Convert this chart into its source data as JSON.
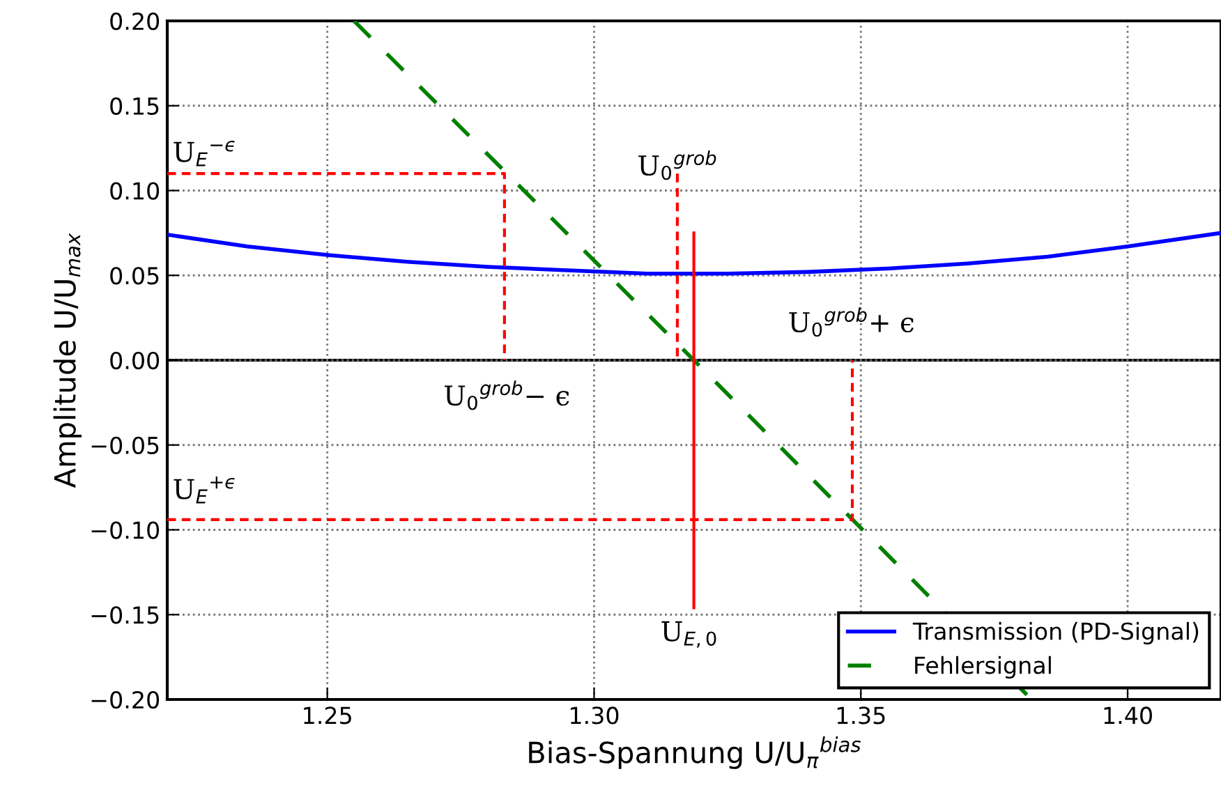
{
  "chart_data": {
    "type": "line",
    "xlabel": "Bias-Spannung U/U$_{π}$$^{bias}$",
    "ylabel": "Amplitude U/U$_{max}$",
    "xlim": [
      1.22,
      1.4175
    ],
    "ylim": [
      -0.2,
      0.2
    ],
    "xticks": [
      {
        "value": 1.25,
        "label": "1.25"
      },
      {
        "value": 1.3,
        "label": "1.30"
      },
      {
        "value": 1.35,
        "label": "1.35"
      },
      {
        "value": 1.4,
        "label": "1.40"
      }
    ],
    "yticks": [
      {
        "value": -0.2,
        "label": "−0.20"
      },
      {
        "value": -0.15,
        "label": "−0.15"
      },
      {
        "value": -0.1,
        "label": "−0.10"
      },
      {
        "value": -0.05,
        "label": "−0.05"
      },
      {
        "value": 0,
        "label": "0.00"
      },
      {
        "value": 0.05,
        "label": "0.05"
      },
      {
        "value": 0.1,
        "label": "0.10"
      },
      {
        "value": 0.15,
        "label": "0.15"
      },
      {
        "value": 0.2,
        "label": "0.20"
      }
    ],
    "grid": true,
    "legend": "bottom right",
    "marker": "none",
    "series": [
      {
        "name": "Transmission (PD-Signal)",
        "color": "#0000ff",
        "line_style": "solid",
        "x": [
          1.22,
          1.235,
          1.25,
          1.265,
          1.28,
          1.295,
          1.31,
          1.325,
          1.34,
          1.355,
          1.37,
          1.385,
          1.4,
          1.4175
        ],
        "values": [
          0.074,
          0.067,
          0.062,
          0.058,
          0.055,
          0.053,
          0.051,
          0.051,
          0.052,
          0.054,
          0.057,
          0.061,
          0.067,
          0.075
        ]
      },
      {
        "name": "Fehlersignal",
        "color": "#008000",
        "line_style": "dashed",
        "x": [
          1.255,
          1.3187,
          1.382
        ],
        "values": [
          0.2,
          0.0,
          -0.2
        ]
      },
      {
        "color": "#ff0000",
        "line_style": "dashed",
        "x": [
          1.22,
          1.2832,
          1.2832
        ],
        "values": [
          0.11,
          0.11,
          0.0
        ]
      },
      {
        "color": "#ff0000",
        "line_style": "dashed",
        "x": [
          1.3156,
          1.3156
        ],
        "values": [
          0.11,
          0.0
        ]
      },
      {
        "color": "#ff0000",
        "line_style": "dashed",
        "x": [
          1.22,
          1.3484,
          1.3484
        ],
        "values": [
          -0.094,
          -0.094,
          0.0
        ]
      },
      {
        "color": "#ff0000",
        "line_style": "solid",
        "x": [
          1.3187,
          1.3187
        ],
        "values": [
          0.075,
          -0.146
        ]
      }
    ],
    "ref_lines": [
      {
        "axis": "y",
        "value": 0,
        "color": "#000000",
        "line_style": "solid"
      }
    ],
    "annotations": [
      "U$_{E}$$^{−ϵ}$",
      "U$_{0}$$^{grob}$",
      "U$_{0}$$^{grob}$− ϵ",
      "U$_{0}$$^{grob}$+ ϵ",
      "U$_{E}$$^{+ϵ}$",
      "U$_{E,0}$"
    ]
  }
}
